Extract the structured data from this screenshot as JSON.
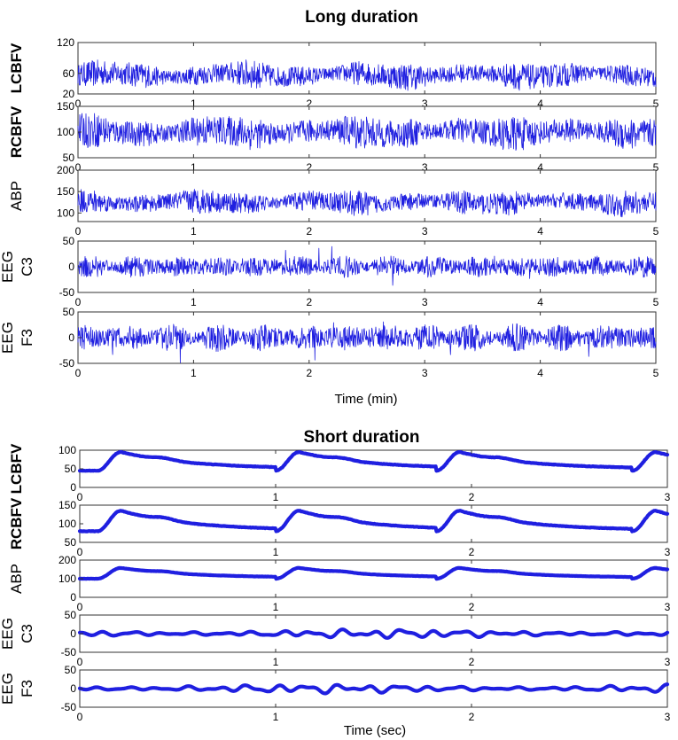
{
  "signal_color": "#1f1fe0",
  "chart_data": [
    {
      "type": "line",
      "panel_group": "long",
      "title": "Long duration",
      "xlabel": "Time (min)",
      "panels": [
        {
          "ylabel": [
            "LCBFV"
          ],
          "ylabel_bold": true,
          "ylim": [
            20,
            120
          ],
          "yticks": [
            20,
            60,
            120
          ],
          "xlim": [
            0,
            5
          ],
          "xticks": [
            0,
            1,
            2,
            3,
            4,
            5
          ],
          "waveform": "pulsatile-dense",
          "center": 57,
          "amplitude": 20
        },
        {
          "ylabel": [
            "RCBFV"
          ],
          "ylabel_bold": true,
          "ylim": [
            50,
            150
          ],
          "yticks": [
            50,
            100,
            150
          ],
          "xlim": [
            0,
            5
          ],
          "xticks": [
            0,
            1,
            2,
            3,
            4,
            5
          ],
          "waveform": "pulsatile-dense",
          "center": 100,
          "amplitude": 25
        },
        {
          "ylabel": [
            "ABP"
          ],
          "ylabel_bold": false,
          "ylim": [
            80,
            200
          ],
          "yticks": [
            100,
            150,
            200
          ],
          "xlim": [
            0,
            5
          ],
          "xticks": [
            0,
            1,
            2,
            3,
            4,
            5
          ],
          "waveform": "pulsatile-dense",
          "center": 125,
          "amplitude": 22
        },
        {
          "ylabel": [
            "EEG",
            "C3"
          ],
          "ylabel_bold": false,
          "ylim": [
            -50,
            50
          ],
          "yticks": [
            -50,
            0,
            50
          ],
          "xlim": [
            0,
            5
          ],
          "xticks": [
            0,
            1,
            2,
            3,
            4,
            5
          ],
          "waveform": "noise-dense",
          "center": 0,
          "amplitude": 18
        },
        {
          "ylabel": [
            "EEG",
            "F3"
          ],
          "ylabel_bold": false,
          "ylim": [
            -50,
            50
          ],
          "yticks": [
            -50,
            0,
            50
          ],
          "xlim": [
            0,
            5
          ],
          "xticks": [
            0,
            1,
            2,
            3,
            4,
            5
          ],
          "waveform": "noise-dense",
          "center": 0,
          "amplitude": 22
        }
      ]
    },
    {
      "type": "line",
      "panel_group": "short",
      "title": "Short duration",
      "xlabel": "Time (sec)",
      "beat_onsets_sec": [
        0.09,
        1.0,
        1.82,
        2.82
      ],
      "panels": [
        {
          "ylabel": [
            "LCBFV"
          ],
          "ylabel_bold": true,
          "ylim": [
            0,
            100
          ],
          "yticks": [
            0,
            50,
            100
          ],
          "xlim": [
            0,
            3
          ],
          "xticks": [
            0,
            1,
            2,
            3
          ],
          "waveform": "beats",
          "trough": 45,
          "peak": 95,
          "diastolic": 50
        },
        {
          "ylabel": [
            "RCBFV"
          ],
          "ylabel_bold": true,
          "ylim": [
            50,
            150
          ],
          "yticks": [
            50,
            100,
            150
          ],
          "xlim": [
            0,
            3
          ],
          "xticks": [
            0,
            1,
            2,
            3
          ],
          "waveform": "beats",
          "trough": 80,
          "peak": 135,
          "diastolic": 82
        },
        {
          "ylabel": [
            "ABP"
          ],
          "ylabel_bold": false,
          "ylim": [
            0,
            200
          ],
          "yticks": [
            0,
            100,
            200
          ],
          "xlim": [
            0,
            3
          ],
          "xticks": [
            0,
            1,
            2,
            3
          ],
          "waveform": "beats",
          "trough": 100,
          "peak": 158,
          "diastolic": 105
        },
        {
          "ylabel": [
            "EEG",
            "C3"
          ],
          "ylabel_bold": false,
          "ylim": [
            -50,
            50
          ],
          "yticks": [
            -50,
            0,
            50
          ],
          "xlim": [
            0,
            3
          ],
          "xticks": [
            0,
            1,
            2,
            3
          ],
          "waveform": "smooth-noise",
          "center": 0,
          "amplitude": 10
        },
        {
          "ylabel": [
            "EEG",
            "F3"
          ],
          "ylabel_bold": false,
          "ylim": [
            -50,
            50
          ],
          "yticks": [
            -50,
            0,
            50
          ],
          "xlim": [
            0,
            3
          ],
          "xticks": [
            0,
            1,
            2,
            3
          ],
          "waveform": "smooth-noise",
          "center": 0,
          "amplitude": 10
        }
      ]
    }
  ]
}
